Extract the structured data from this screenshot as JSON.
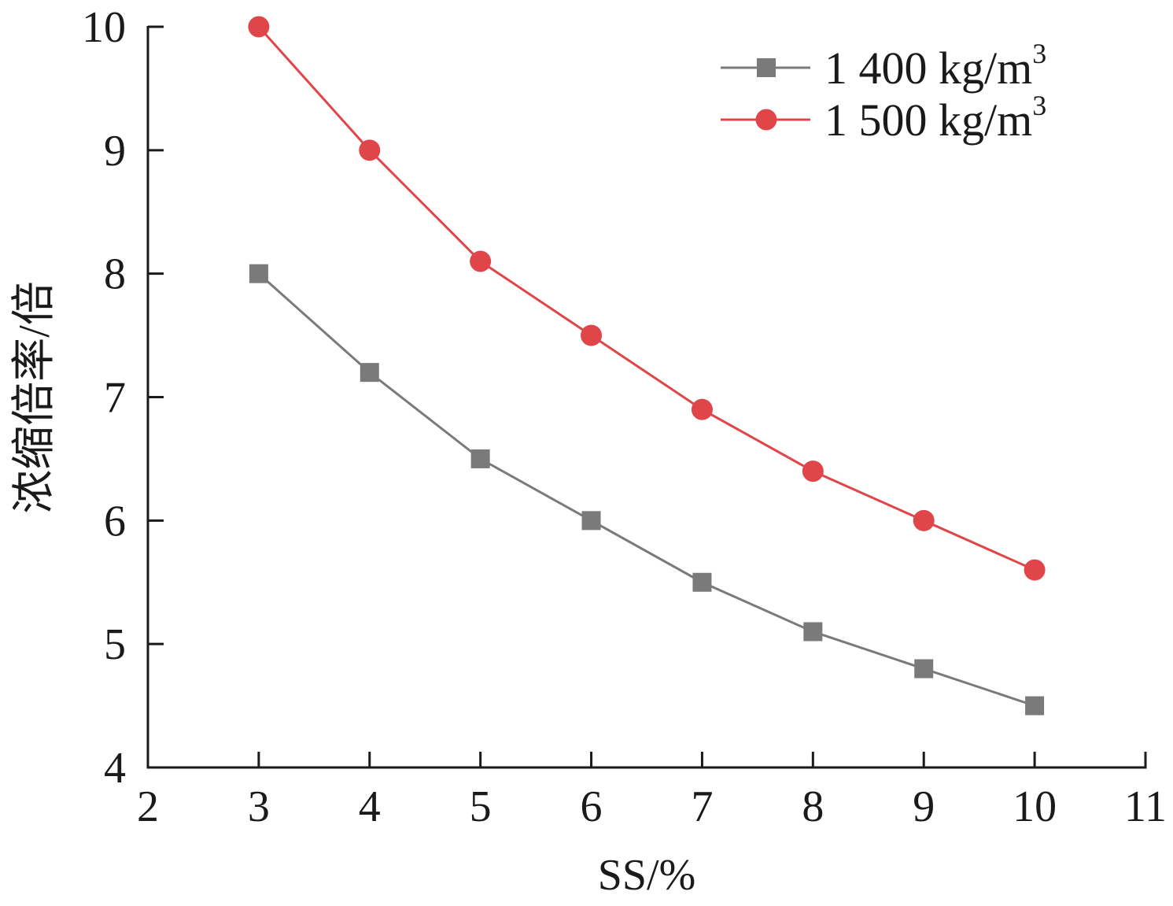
{
  "chart_data": {
    "type": "line",
    "title": "",
    "xlabel": "SS/%",
    "ylabel": "浓缩倍率/倍",
    "xlim": [
      2,
      11
    ],
    "ylim": [
      4,
      10
    ],
    "xticks": [
      2,
      3,
      4,
      5,
      6,
      7,
      8,
      9,
      10,
      11
    ],
    "yticks": [
      4,
      5,
      6,
      7,
      8,
      9,
      10
    ],
    "legend_position": "top-right",
    "x": [
      3,
      4,
      5,
      6,
      7,
      8,
      9,
      10
    ],
    "series": [
      {
        "name": "1 400 kg/m",
        "unit_exponent": "3",
        "marker": "square",
        "color": "#7a7a7a",
        "values": [
          8.0,
          7.2,
          6.5,
          6.0,
          5.5,
          5.1,
          4.8,
          4.5
        ]
      },
      {
        "name": "1 500 kg/m",
        "unit_exponent": "3",
        "marker": "circle",
        "color": "#e0454a",
        "values": [
          10.0,
          9.0,
          8.1,
          7.5,
          6.9,
          6.4,
          6.0,
          5.6
        ]
      }
    ]
  }
}
